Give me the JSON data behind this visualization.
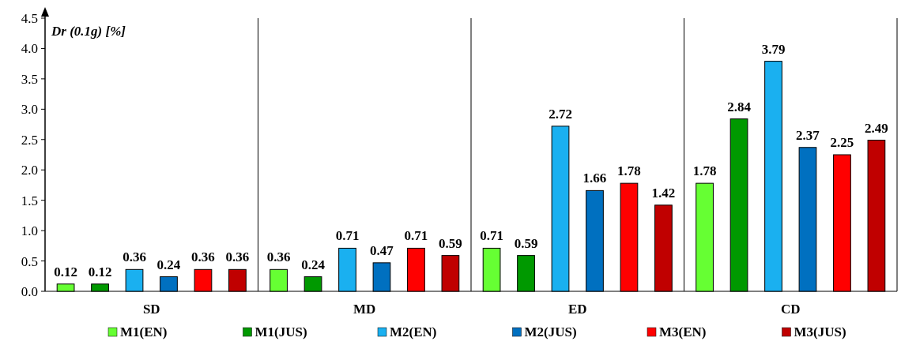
{
  "chart_data": {
    "type": "bar",
    "ylabel": "Dr (0.1g) [%]",
    "categories": [
      "SD",
      "MD",
      "ED",
      "CD"
    ],
    "series": [
      {
        "name": "M1(EN)",
        "color": "#66ff33",
        "values": [
          0.12,
          0.36,
          0.71,
          1.78
        ]
      },
      {
        "name": "M1(JUS)",
        "color": "#009900",
        "values": [
          0.12,
          0.24,
          0.59,
          2.84
        ]
      },
      {
        "name": "M2(EN)",
        "color": "#1ab0f0",
        "values": [
          0.36,
          0.71,
          2.72,
          3.79
        ]
      },
      {
        "name": "M2(JUS)",
        "color": "#0070c0",
        "values": [
          0.24,
          0.47,
          1.66,
          2.37
        ]
      },
      {
        "name": "M3(EN)",
        "color": "#ff0000",
        "values": [
          0.36,
          0.71,
          1.78,
          2.25
        ]
      },
      {
        "name": "M3(JUS)",
        "color": "#c00000",
        "values": [
          0.36,
          0.59,
          1.42,
          2.49
        ]
      }
    ],
    "ylim": [
      0,
      4.5
    ],
    "yticks": [
      {
        "value": 0,
        "label": "0.0"
      },
      {
        "value": 0.5,
        "label": "0.5"
      },
      {
        "value": 1,
        "label": "1.0"
      },
      {
        "value": 1.5,
        "label": "1.5"
      },
      {
        "value": 2,
        "label": "2.0"
      },
      {
        "value": 2.5,
        "label": "2.5"
      },
      {
        "value": 3,
        "label": "3.0"
      },
      {
        "value": 3.5,
        "label": "3.5"
      },
      {
        "value": 4,
        "label": "4.0"
      },
      {
        "value": 4.5,
        "label": "4.5"
      }
    ],
    "data_labels": true,
    "legend": "bottom",
    "grid": false
  }
}
